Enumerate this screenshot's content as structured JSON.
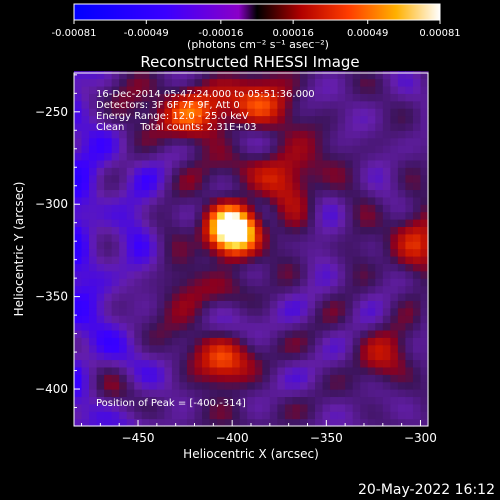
{
  "chart_data": {
    "type": "heatmap",
    "title": "Reconstructed RHESSI Image",
    "xlabel": "Heliocentric X (arcsec)",
    "ylabel": "Heliocentric Y (arcsec)",
    "xlim": [
      -484,
      -296
    ],
    "ylim": [
      -420,
      -229
    ],
    "xticks": [
      -450,
      -400,
      -350,
      -300
    ],
    "xtick_labels": [
      "−450",
      "−400",
      "−350",
      "−300"
    ],
    "yticks": [
      -250,
      -300,
      -350,
      -400
    ],
    "ytick_labels": [
      "−250",
      "−300",
      "−350",
      "−400"
    ],
    "annotations": [
      "16-Dec-2014 05:47:24.000 to 05:51:36.000",
      "Detectors: 3F 6F 7F 9F, Att 0",
      "Energy Range: 12.0 - 25.0 keV",
      "Clean     Total counts: 2.31E+03"
    ],
    "peak_label": "Position of Peak = [-400,-314]",
    "peak_position": [
      -400,
      -314
    ],
    "colorbar": {
      "range": [
        -0.00081,
        0.00081
      ],
      "tick_labels": [
        "-0.00081",
        "-0.00049",
        "-0.00016",
        "0.00016",
        "0.00049",
        "0.00081"
      ],
      "unit_label": "(photons cm⁻² s⁻¹ asec⁻²)"
    },
    "sources": [
      {
        "x": -400,
        "y": -314,
        "sigma": 11,
        "amplitude": 1.0
      },
      {
        "x": -420,
        "y": -252,
        "sigma": 14,
        "amplitude": 0.42
      },
      {
        "x": -384,
        "y": -240,
        "sigma": 12,
        "amplitude": 0.38
      },
      {
        "x": -455,
        "y": -244,
        "sigma": 11,
        "amplitude": 0.32
      },
      {
        "x": -368,
        "y": -282,
        "sigma": 13,
        "amplitude": 0.34
      },
      {
        "x": -430,
        "y": -355,
        "sigma": 12,
        "amplitude": 0.26
      },
      {
        "x": -405,
        "y": -388,
        "sigma": 11,
        "amplitude": 0.4
      },
      {
        "x": -465,
        "y": -402,
        "sigma": 9,
        "amplitude": 0.22
      },
      {
        "x": -305,
        "y": -320,
        "sigma": 12,
        "amplitude": 0.32
      },
      {
        "x": -318,
        "y": -382,
        "sigma": 11,
        "amplitude": 0.26
      }
    ],
    "grid": false
  },
  "footer_timestamp": "20-May-2022 16:12"
}
